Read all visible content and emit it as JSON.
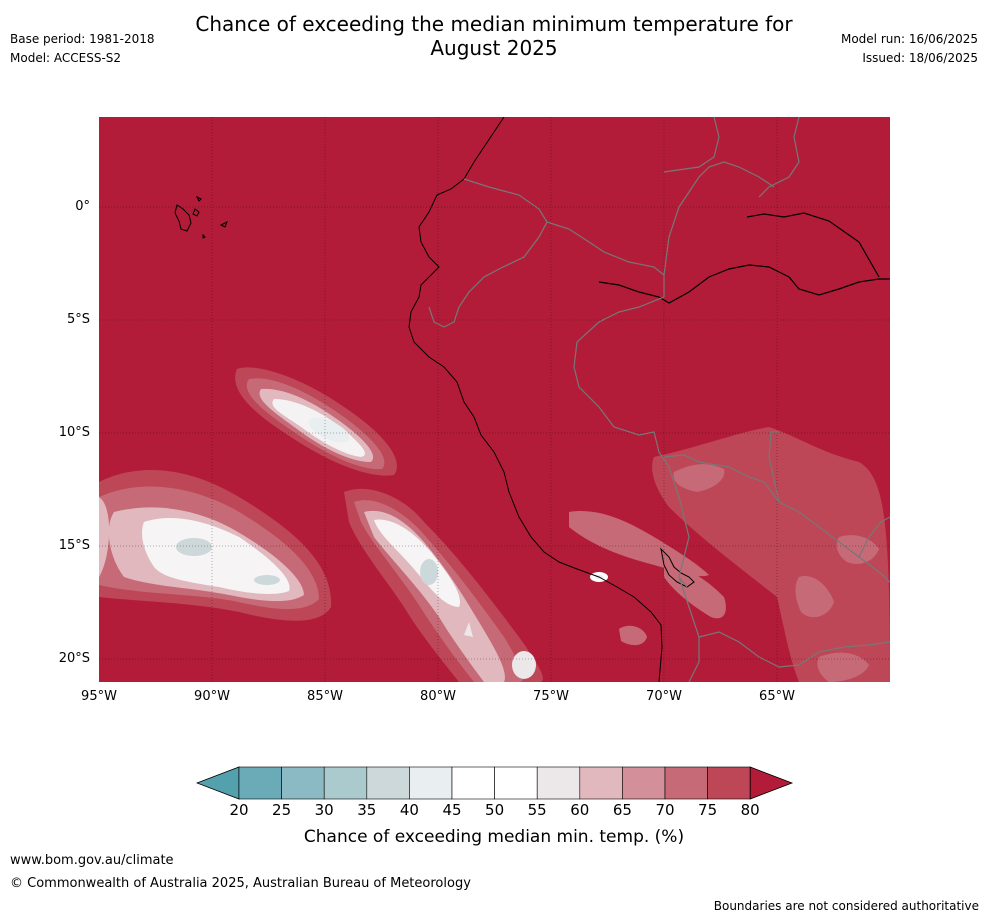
{
  "title_line1": "Chance of exceeding the median minimum temperature for",
  "title_line2": "August 2025",
  "base_period": "Base period: 1981-2018",
  "model": "Model: ACCESS-S2",
  "model_run": "Model run: 16/06/2025",
  "issued": "Issued: 18/06/2025",
  "lat_labels": [
    "0°",
    "5°S",
    "10°S",
    "15°S",
    "20°S"
  ],
  "lon_labels": [
    "95°W",
    "90°W",
    "85°W",
    "80°W",
    "75°W",
    "70°W",
    "65°W"
  ],
  "colorbar": {
    "ticks": [
      "20",
      "25",
      "30",
      "35",
      "40",
      "45",
      "50",
      "55",
      "60",
      "65",
      "70",
      "75",
      "80"
    ],
    "colors": [
      "#6aabb7",
      "#8bbac4",
      "#abcacd",
      "#cdd8da",
      "#e9eef0",
      "#ffffff",
      "#ffffff",
      "#ece7e8",
      "#e0b8be",
      "#d3909a",
      "#c76a77",
      "#bd4756"
    ],
    "low_color": "#52a1ad",
    "high_color": "#b31c38",
    "title": "Chance of exceeding median min. temp. (%)"
  },
  "website": "www.bom.gov.au/climate",
  "copyright": "© Commonwealth of Australia 2025, Australian Bureau of Meteorology",
  "disclaimer": "Boundaries are not considered authoritative",
  "map_base_color": "#b31c38"
}
